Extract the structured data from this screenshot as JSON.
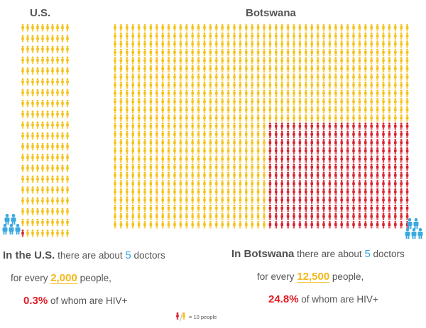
{
  "chart_data": {
    "type": "pictogram",
    "unit_value": 10,
    "colors": {
      "population": "#f6c21a",
      "hiv": "#d9222d",
      "doctor": "#3aa9e0"
    },
    "panels": [
      {
        "id": "us",
        "title": "U.S.",
        "population_icons": 200,
        "hiv_icons": 1,
        "doctor_icons": 5,
        "text_lead": "In the U.S.",
        "text_mid": " there are about ",
        "doctors": "5",
        "text_doctors": " doctors",
        "line2_pre": "for every ",
        "people": "2,000",
        "line2_post": " people,",
        "hiv_pct": "0.3%",
        "line3_post": " of whom are HIV+"
      },
      {
        "id": "botswana",
        "title": "Botswana",
        "population_icons": 1250,
        "hiv_icons": 310,
        "doctor_icons": 5,
        "text_lead": "In Botswana",
        "text_mid": " there are about ",
        "doctors": "5",
        "text_doctors": " doctors",
        "line2_pre": "for every ",
        "people": "12,500",
        "line2_post": " people,",
        "hiv_pct": "24.8%",
        "line3_post": " of whom are HIV+"
      }
    ],
    "legend": {
      "label": "= 10 people"
    }
  }
}
